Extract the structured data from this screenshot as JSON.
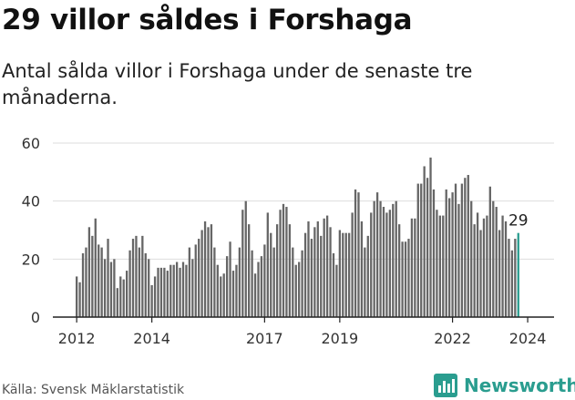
{
  "title": "29 villor såldes i Forshaga",
  "subtitle": "Antal sålda villor i Forshaga under de senaste tre månaderna.",
  "source": "Källa: Svensk Mäklarstatistik",
  "brand": "Newsworthy",
  "icon": "bar-chart-icon",
  "colors": {
    "bar": "#666666",
    "highlight": "#2a9d8f",
    "grid": "#dddddd",
    "brand": "#2a9d8f"
  },
  "chart_data": {
    "type": "bar",
    "title": "29 villor såldes i Forshaga",
    "xlabel": "",
    "ylabel": "",
    "ylim": [
      0,
      60
    ],
    "yticks": [
      0,
      20,
      40,
      60
    ],
    "xticks": [
      {
        "label": "2012",
        "index": 0
      },
      {
        "label": "2014",
        "index": 24
      },
      {
        "label": "2017",
        "index": 60
      },
      {
        "label": "2019",
        "index": 84
      },
      {
        "label": "2022",
        "index": 120
      },
      {
        "label": "2024",
        "index": 144
      }
    ],
    "start": "2012-01",
    "frequency": "monthly",
    "highlight_label": "29",
    "values": [
      14,
      12,
      22,
      24,
      31,
      28,
      34,
      25,
      24,
      20,
      27,
      19,
      20,
      10,
      14,
      13,
      16,
      23,
      27,
      28,
      24,
      28,
      22,
      20,
      11,
      14,
      17,
      17,
      17,
      16,
      18,
      18,
      19,
      17,
      19,
      18,
      24,
      20,
      25,
      27,
      30,
      33,
      31,
      32,
      24,
      18,
      14,
      15,
      21,
      26,
      16,
      18,
      24,
      37,
      40,
      32,
      23,
      15,
      19,
      21,
      25,
      36,
      29,
      24,
      32,
      37,
      39,
      38,
      32,
      24,
      18,
      19,
      23,
      29,
      33,
      27,
      31,
      33,
      28,
      34,
      35,
      31,
      22,
      18,
      30,
      29,
      29,
      29,
      36,
      44,
      43,
      33,
      24,
      28,
      36,
      40,
      43,
      40,
      38,
      36,
      37,
      39,
      40,
      32,
      26,
      26,
      27,
      34,
      34,
      46,
      46,
      52,
      48,
      55,
      44,
      37,
      35,
      35,
      44,
      41,
      43,
      46,
      39,
      46,
      48,
      49,
      40,
      32,
      36,
      30,
      34,
      35,
      45,
      40,
      38,
      30,
      35,
      33,
      27,
      23,
      27,
      29
    ]
  }
}
